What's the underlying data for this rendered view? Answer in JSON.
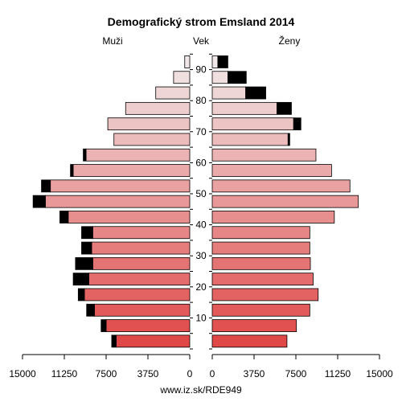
{
  "chart_data": {
    "type": "bar",
    "title": "Demografický strom Emsland 2014",
    "left_label": "Muži",
    "center_label": "Vek",
    "right_label": "Ženy",
    "source": "www.iz.sk/RDE949",
    "xlim": [
      0,
      15000
    ],
    "x_ticks": [
      "15000",
      "11250",
      "7500",
      "3750",
      "0"
    ],
    "x_ticks_right": [
      "0",
      "3750",
      "7500",
      "11250",
      "15000"
    ],
    "x_tick_values": [
      15000,
      11250,
      7500,
      3750,
      0
    ],
    "x_tick_values_right": [
      0,
      3750,
      7500,
      11250,
      15000
    ],
    "y_ticks": [
      "10",
      "20",
      "30",
      "40",
      "50",
      "60",
      "70",
      "80",
      "90"
    ],
    "age_groups": [
      "0-4",
      "5-9",
      "10-14",
      "15-19",
      "20-24",
      "25-29",
      "30-34",
      "35-39",
      "40-44",
      "45-49",
      "50-54",
      "55-59",
      "60-64",
      "65-69",
      "70-74",
      "75-79",
      "80-84",
      "85-89",
      "90+"
    ],
    "male_total": [
      7000,
      7950,
      9250,
      10000,
      10450,
      10250,
      9700,
      9700,
      11650,
      14050,
      13300,
      10700,
      9550,
      6800,
      7350,
      5750,
      3050,
      1450,
      450
    ],
    "male_excess": [
      400,
      450,
      700,
      550,
      1400,
      1550,
      900,
      1000,
      750,
      1100,
      800,
      250,
      250,
      0,
      0,
      0,
      0,
      0,
      0
    ],
    "female_total": [
      6700,
      7550,
      8750,
      9500,
      9050,
      8800,
      8750,
      8750,
      10950,
      13100,
      12350,
      10700,
      9300,
      6950,
      7950,
      7100,
      4800,
      3050,
      1400
    ],
    "female_excess": [
      0,
      0,
      0,
      0,
      0,
      0,
      0,
      0,
      0,
      0,
      0,
      0,
      0,
      150,
      650,
      1300,
      1800,
      1650,
      900
    ],
    "colors": {
      "light": "#f0e8e8",
      "dark_male": "#e04848",
      "dark_female": "#e04848",
      "excess": "#000000"
    }
  }
}
